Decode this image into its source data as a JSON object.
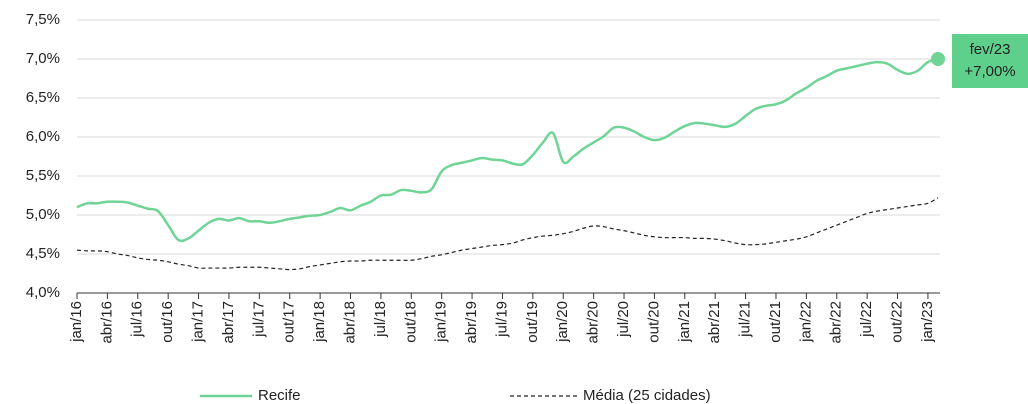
{
  "chart_data": {
    "type": "line",
    "categories": [
      "jan/16",
      null,
      null,
      "abr/16",
      null,
      null,
      "jul/16",
      null,
      null,
      "out/16",
      null,
      null,
      "jan/17",
      null,
      null,
      "abr/17",
      null,
      null,
      "jul/17",
      null,
      null,
      "out/17",
      null,
      null,
      "jan/18",
      null,
      null,
      "abr/18",
      null,
      null,
      "jul/18",
      null,
      null,
      "out/18",
      null,
      null,
      "jan/19",
      null,
      null,
      "abr/19",
      null,
      null,
      "jul/19",
      null,
      null,
      "out/19",
      null,
      null,
      "jan/20",
      null,
      null,
      "abr/20",
      null,
      null,
      "jul/20",
      null,
      null,
      "out/20",
      null,
      null,
      "jan/21",
      null,
      null,
      "abr/21",
      null,
      null,
      "jul/21",
      null,
      null,
      "out/21",
      null,
      null,
      "jan/22",
      null,
      null,
      "abr/22",
      null,
      null,
      "jul/22",
      null,
      null,
      "out/22",
      null,
      null,
      "jan/23",
      null
    ],
    "series": [
      {
        "name": "Recife",
        "color": "#6fd496",
        "dashed": false,
        "values": [
          5.1,
          5.15,
          5.15,
          5.17,
          5.17,
          5.16,
          5.12,
          5.08,
          5.05,
          4.87,
          4.68,
          4.7,
          4.8,
          4.9,
          4.95,
          4.93,
          4.96,
          4.92,
          4.92,
          4.9,
          4.92,
          4.95,
          4.97,
          4.99,
          5.0,
          5.04,
          5.09,
          5.06,
          5.12,
          5.17,
          5.25,
          5.26,
          5.32,
          5.31,
          5.29,
          5.33,
          5.56,
          5.64,
          5.67,
          5.7,
          5.73,
          5.71,
          5.7,
          5.66,
          5.65,
          5.77,
          5.93,
          6.05,
          5.68,
          5.75,
          5.85,
          5.93,
          6.01,
          6.12,
          6.12,
          6.07,
          6.0,
          5.96,
          5.99,
          6.07,
          6.14,
          6.18,
          6.17,
          6.15,
          6.13,
          6.17,
          6.27,
          6.36,
          6.4,
          6.42,
          6.47,
          6.56,
          6.63,
          6.72,
          6.78,
          6.85,
          6.88,
          6.91,
          6.94,
          6.96,
          6.94,
          6.86,
          6.81,
          6.85,
          6.96,
          7.0
        ]
      },
      {
        "name": "Média (25 cidades)",
        "color": "#222222",
        "dashed": true,
        "values": [
          4.55,
          4.54,
          4.54,
          4.53,
          4.5,
          4.48,
          4.45,
          4.43,
          4.42,
          4.4,
          4.37,
          4.35,
          4.32,
          4.32,
          4.32,
          4.32,
          4.33,
          4.33,
          4.33,
          4.32,
          4.31,
          4.3,
          4.31,
          4.34,
          4.36,
          4.38,
          4.4,
          4.41,
          4.41,
          4.42,
          4.42,
          4.42,
          4.42,
          4.42,
          4.44,
          4.47,
          4.49,
          4.52,
          4.55,
          4.57,
          4.59,
          4.61,
          4.62,
          4.64,
          4.68,
          4.71,
          4.73,
          4.74,
          4.76,
          4.79,
          4.83,
          4.86,
          4.85,
          4.82,
          4.8,
          4.77,
          4.74,
          4.72,
          4.71,
          4.71,
          4.71,
          4.7,
          4.7,
          4.69,
          4.67,
          4.64,
          4.62,
          4.62,
          4.63,
          4.65,
          4.67,
          4.69,
          4.72,
          4.77,
          4.82,
          4.87,
          4.92,
          4.97,
          5.02,
          5.05,
          5.07,
          5.09,
          5.11,
          5.13,
          5.15,
          5.22
        ]
      }
    ],
    "ylim": [
      4.0,
      7.5
    ],
    "yticks": [
      {
        "value": 4.0,
        "label": "4,0%"
      },
      {
        "value": 4.5,
        "label": "4,5%"
      },
      {
        "value": 5.0,
        "label": "5,0%"
      },
      {
        "value": 5.5,
        "label": "5,5%"
      },
      {
        "value": 6.0,
        "label": "6,0%"
      },
      {
        "value": 6.5,
        "label": "6,5%"
      },
      {
        "value": 7.0,
        "label": "7,0%"
      },
      {
        "value": 7.5,
        "label": "7,5%"
      }
    ],
    "grid": true,
    "legend": "bottom",
    "annotation": {
      "label": "fev/23",
      "value_label": "+7,00%",
      "color": "#5fd08b"
    }
  }
}
